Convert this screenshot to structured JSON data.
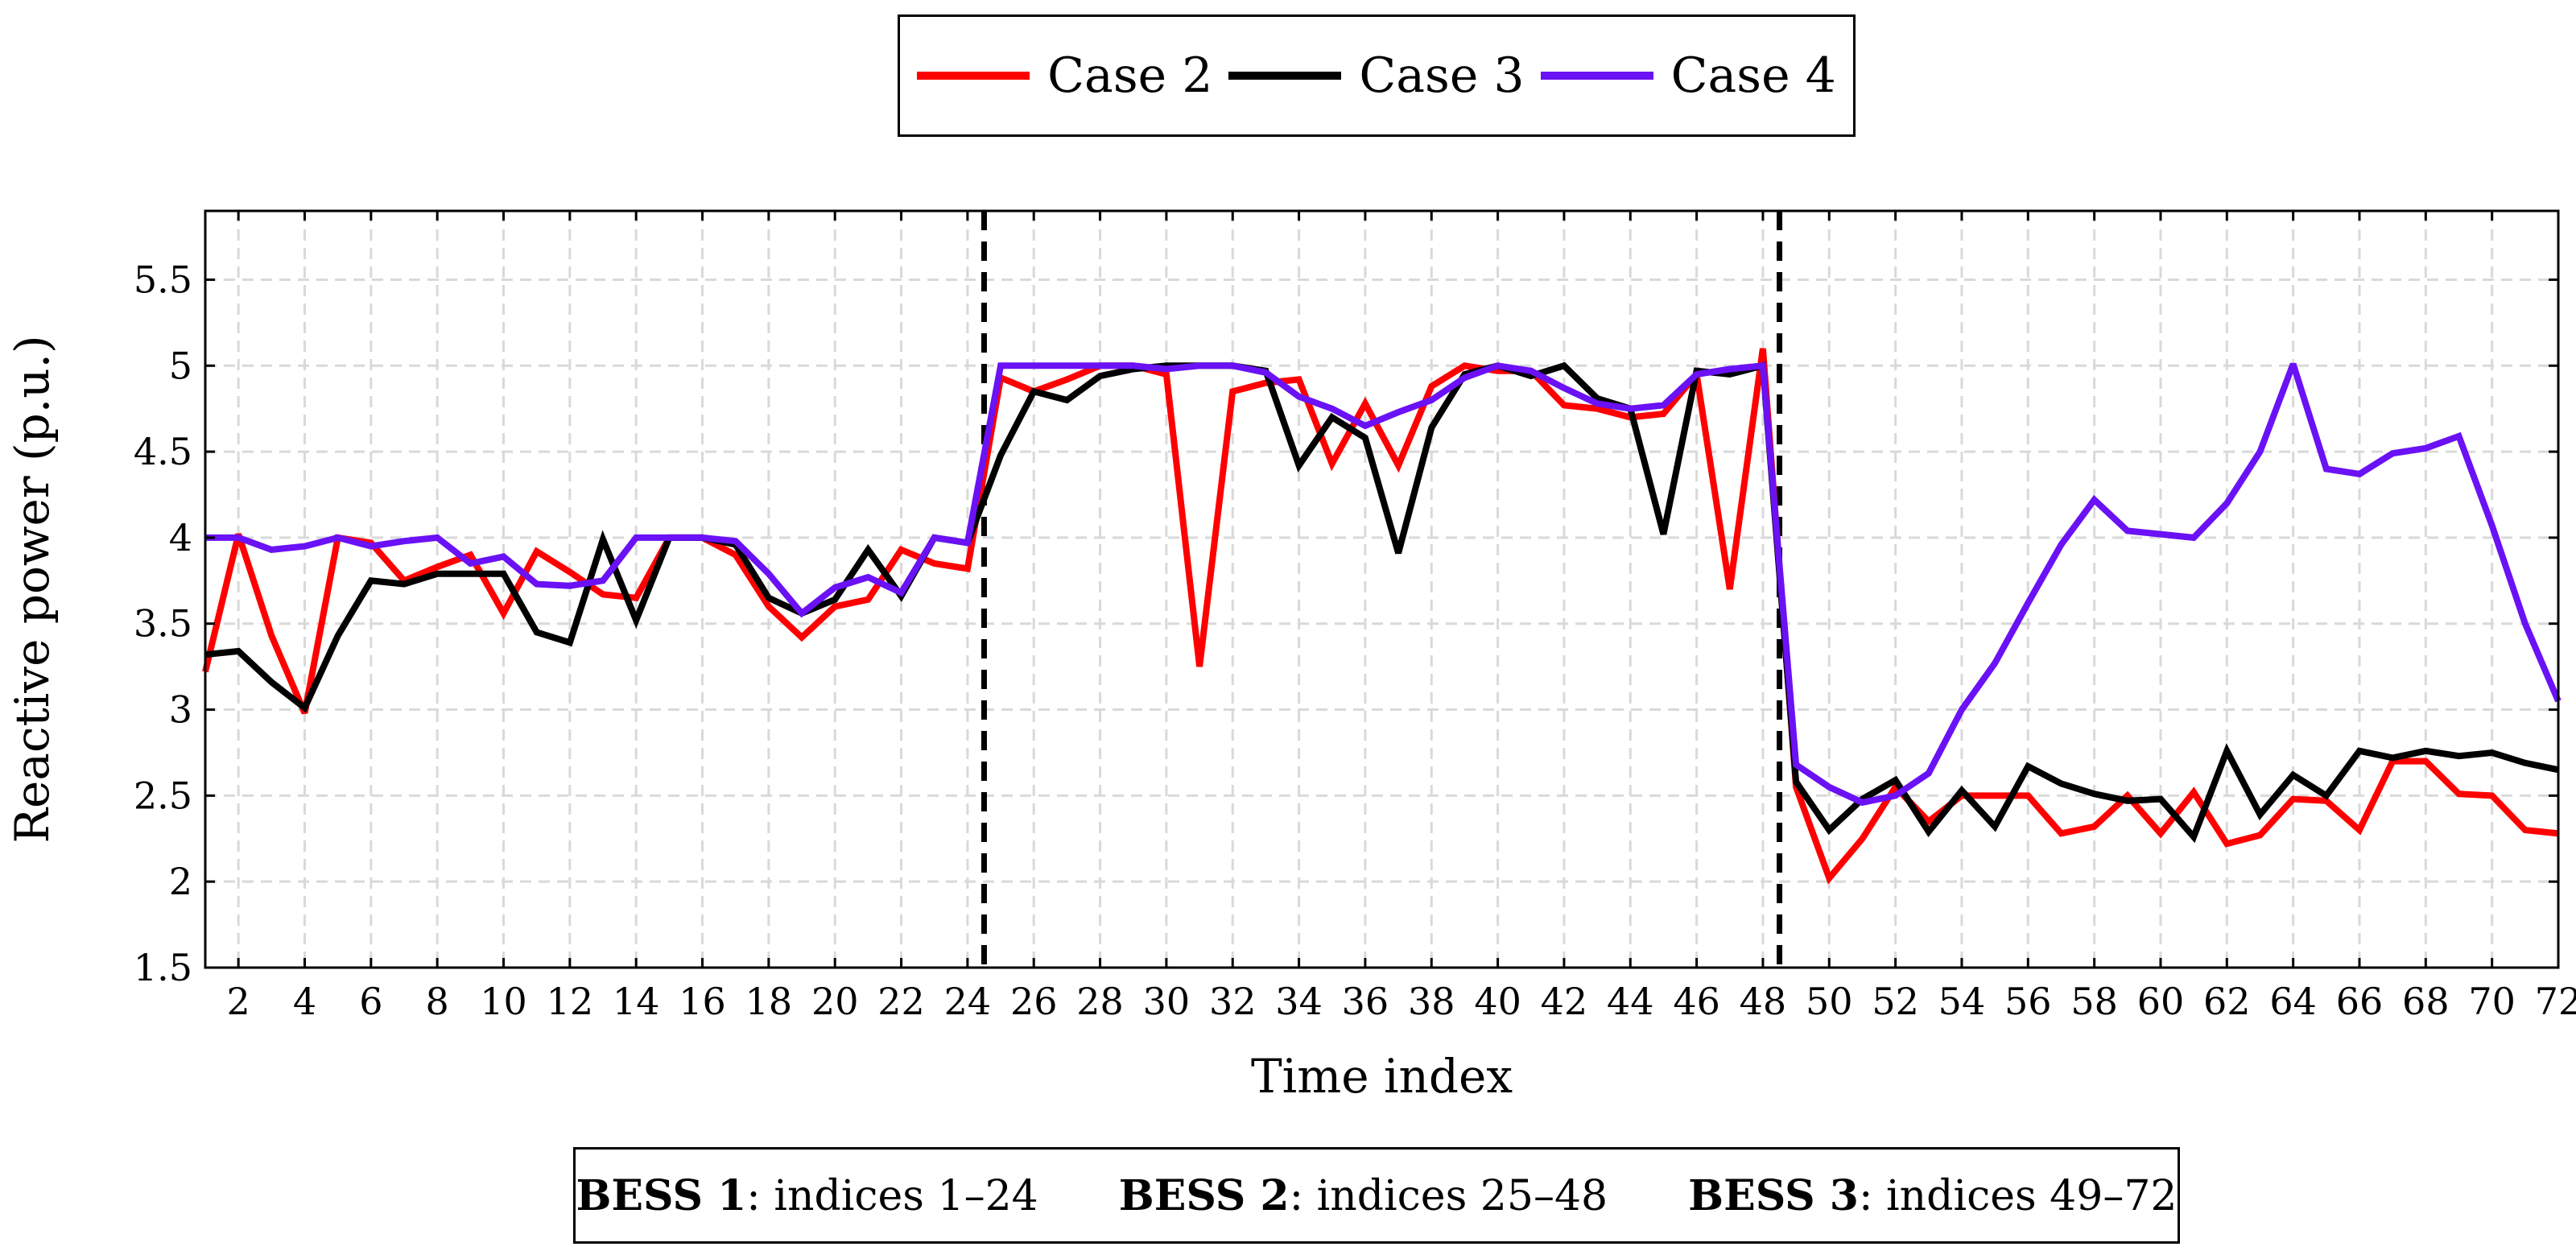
{
  "legend": [
    {
      "label": "Case 2",
      "color": "#ff0000"
    },
    {
      "label": "Case 3",
      "color": "#000000"
    },
    {
      "label": "Case 4",
      "color": "#6a11f5"
    }
  ],
  "note": [
    {
      "name": "BESS 1",
      "range": ": indices 1–24"
    },
    {
      "name": "BESS 2",
      "range": ": indices 25–48"
    },
    {
      "name": "BESS 3",
      "range": ": indices 49–72"
    }
  ],
  "chart_data": {
    "type": "line",
    "title": "",
    "xlabel": "Time index",
    "ylabel": "Reactive power (p.u.)",
    "xlim": [
      1,
      72
    ],
    "ylim": [
      1.5,
      5.9
    ],
    "xticks": [
      2,
      4,
      6,
      8,
      10,
      12,
      14,
      16,
      18,
      20,
      22,
      24,
      26,
      28,
      30,
      32,
      34,
      36,
      38,
      40,
      42,
      44,
      46,
      48,
      50,
      52,
      54,
      56,
      58,
      60,
      62,
      64,
      66,
      68,
      70,
      72
    ],
    "yticks": [
      1.5,
      2,
      2.5,
      3,
      3.5,
      4,
      4.5,
      5,
      5.5
    ],
    "ytick_labels": [
      "1.5",
      "2",
      "2.5",
      "3",
      "3.5",
      "4",
      "4.5",
      "5",
      "5.5"
    ],
    "grid": true,
    "legend_position": "top-center",
    "vlines": [
      24.5,
      48.5
    ],
    "x": [
      1,
      2,
      3,
      4,
      5,
      6,
      7,
      8,
      9,
      10,
      11,
      12,
      13,
      14,
      15,
      16,
      17,
      18,
      19,
      20,
      21,
      22,
      23,
      24,
      25,
      26,
      27,
      28,
      29,
      30,
      31,
      32,
      33,
      34,
      35,
      36,
      37,
      38,
      39,
      40,
      41,
      42,
      43,
      44,
      45,
      46,
      47,
      48,
      49,
      50,
      51,
      52,
      53,
      54,
      55,
      56,
      57,
      58,
      59,
      60,
      61,
      62,
      63,
      64,
      65,
      66,
      67,
      68,
      69,
      70,
      71,
      72
    ],
    "series": [
      {
        "name": "Case 2",
        "color": "#ff0000",
        "values": [
          3.22,
          4.02,
          3.43,
          2.98,
          4.0,
          3.97,
          3.75,
          3.83,
          3.9,
          3.56,
          3.92,
          3.8,
          3.67,
          3.65,
          4.0,
          4.0,
          3.9,
          3.6,
          3.42,
          3.6,
          3.64,
          3.93,
          3.85,
          3.82,
          4.93,
          4.85,
          4.92,
          5.0,
          5.0,
          4.95,
          3.25,
          4.85,
          4.9,
          4.92,
          4.43,
          4.78,
          4.42,
          4.88,
          5.0,
          4.97,
          4.97,
          4.77,
          4.75,
          4.7,
          4.72,
          4.95,
          3.7,
          5.1,
          2.55,
          2.02,
          2.25,
          2.55,
          2.35,
          2.5,
          2.5,
          2.5,
          2.28,
          2.32,
          2.5,
          2.28,
          2.52,
          2.22,
          2.27,
          2.48,
          2.47,
          2.3,
          2.7,
          2.7,
          2.51,
          2.5,
          2.3,
          2.28
        ]
      },
      {
        "name": "Case 3",
        "color": "#000000",
        "values": [
          3.32,
          3.34,
          3.16,
          3.01,
          3.43,
          3.75,
          3.73,
          3.79,
          3.79,
          3.79,
          3.45,
          3.39,
          3.99,
          3.52,
          4.0,
          4.0,
          3.96,
          3.65,
          3.56,
          3.64,
          3.93,
          3.66,
          4.0,
          3.97,
          4.48,
          4.85,
          4.8,
          4.94,
          4.98,
          5.0,
          5.0,
          5.0,
          4.97,
          4.42,
          4.7,
          4.58,
          3.91,
          4.64,
          4.95,
          5.0,
          4.94,
          5.0,
          4.81,
          4.75,
          4.02,
          4.97,
          4.95,
          5.0,
          2.58,
          2.3,
          2.48,
          2.59,
          2.29,
          2.53,
          2.32,
          2.67,
          2.57,
          2.51,
          2.47,
          2.48,
          2.26,
          2.76,
          2.39,
          2.62,
          2.5,
          2.76,
          2.72,
          2.76,
          2.73,
          2.75,
          2.69,
          2.65
        ]
      },
      {
        "name": "Case 4",
        "color": "#6a11f5",
        "values": [
          4.0,
          4.0,
          3.93,
          3.95,
          4.0,
          3.95,
          3.98,
          4.0,
          3.85,
          3.89,
          3.73,
          3.72,
          3.75,
          4.0,
          4.0,
          4.0,
          3.98,
          3.79,
          3.56,
          3.71,
          3.77,
          3.68,
          4.0,
          3.97,
          5.0,
          5.0,
          5.0,
          5.0,
          5.0,
          4.98,
          5.0,
          5.0,
          4.96,
          4.82,
          4.75,
          4.65,
          4.73,
          4.8,
          4.93,
          5.0,
          4.97,
          4.87,
          4.78,
          4.75,
          4.77,
          4.95,
          4.98,
          5.0,
          2.68,
          2.55,
          2.46,
          2.5,
          2.63,
          3.0,
          3.27,
          3.62,
          3.96,
          4.22,
          4.04,
          4.02,
          4.0,
          4.2,
          4.5,
          5.01,
          4.4,
          4.37,
          4.49,
          4.52,
          4.59,
          4.07,
          3.5,
          3.05
        ]
      }
    ]
  }
}
